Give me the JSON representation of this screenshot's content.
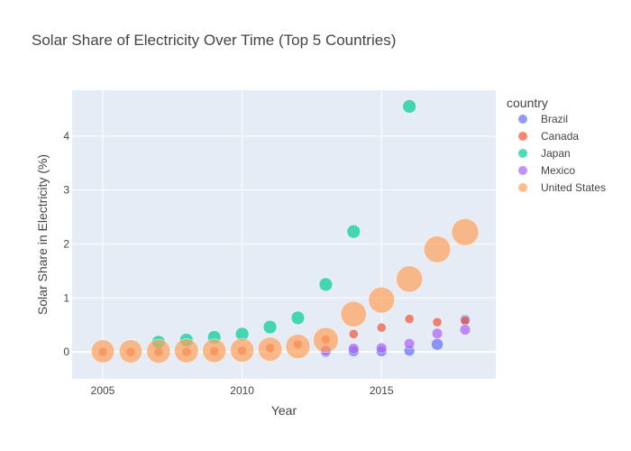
{
  "chart_data": {
    "type": "scatter",
    "title": "Solar Share of Electricity Over Time (Top 5 Countries)",
    "xlabel": "Year",
    "ylabel": "Solar Share in Electricity (%)",
    "xlim": [
      2003.9,
      2019.1
    ],
    "ylim": [
      -0.5,
      4.85
    ],
    "x_ticks": [
      2005,
      2010,
      2015
    ],
    "y_ticks": [
      0,
      1,
      2,
      3,
      4
    ],
    "grid": true,
    "legend_title": "country",
    "legend_position": "right",
    "series": [
      {
        "name": "Brazil",
        "color": "#636efa",
        "points": [
          {
            "x": 2013,
            "y": 0.0,
            "size": 0.03
          },
          {
            "x": 2014,
            "y": 0.01,
            "size": 0.03
          },
          {
            "x": 2015,
            "y": 0.01,
            "size": 0.03
          },
          {
            "x": 2016,
            "y": 0.02,
            "size": 0.03
          },
          {
            "x": 2017,
            "y": 0.14,
            "size": 0.055
          },
          {
            "x": 2018,
            "y": 0.59,
            "size": 0.03
          }
        ]
      },
      {
        "name": "Canada",
        "color": "#ef553b",
        "points": [
          {
            "x": 2005,
            "y": 0.0,
            "size": 0.01
          },
          {
            "x": 2006,
            "y": 0.0,
            "size": 0.01
          },
          {
            "x": 2007,
            "y": 0.0,
            "size": 0.01
          },
          {
            "x": 2008,
            "y": 0.0,
            "size": 0.01
          },
          {
            "x": 2009,
            "y": 0.01,
            "size": 0.01
          },
          {
            "x": 2010,
            "y": 0.02,
            "size": 0.01
          },
          {
            "x": 2011,
            "y": 0.07,
            "size": 0.01
          },
          {
            "x": 2012,
            "y": 0.14,
            "size": 0.01
          },
          {
            "x": 2013,
            "y": 0.23,
            "size": 0.01
          },
          {
            "x": 2014,
            "y": 0.33,
            "size": 0.01
          },
          {
            "x": 2015,
            "y": 0.45,
            "size": 0.01
          },
          {
            "x": 2016,
            "y": 0.61,
            "size": 0.01
          },
          {
            "x": 2017,
            "y": 0.55,
            "size": 0.01
          },
          {
            "x": 2018,
            "y": 0.58,
            "size": 0.01
          }
        ]
      },
      {
        "name": "Japan",
        "color": "#00cc96",
        "points": [
          {
            "x": 2007,
            "y": 0.18,
            "size": 0.1
          },
          {
            "x": 2008,
            "y": 0.22,
            "size": 0.1
          },
          {
            "x": 2009,
            "y": 0.27,
            "size": 0.1
          },
          {
            "x": 2010,
            "y": 0.33,
            "size": 0.1
          },
          {
            "x": 2011,
            "y": 0.46,
            "size": 0.1
          },
          {
            "x": 2012,
            "y": 0.63,
            "size": 0.1
          },
          {
            "x": 2013,
            "y": 1.25,
            "size": 0.1
          },
          {
            "x": 2014,
            "y": 2.23,
            "size": 0.1
          },
          {
            "x": 2016,
            "y": 4.55,
            "size": 0.1
          }
        ]
      },
      {
        "name": "Mexico",
        "color": "#ab63fa",
        "points": [
          {
            "x": 2013,
            "y": 0.03,
            "size": 0.03
          },
          {
            "x": 2014,
            "y": 0.06,
            "size": 0.03
          },
          {
            "x": 2015,
            "y": 0.07,
            "size": 0.03
          },
          {
            "x": 2016,
            "y": 0.15,
            "size": 0.03
          },
          {
            "x": 2017,
            "y": 0.34,
            "size": 0.03
          },
          {
            "x": 2018,
            "y": 0.41,
            "size": 0.03
          }
        ]
      },
      {
        "name": "United States",
        "color": "#ffa15a",
        "points": [
          {
            "x": 2005,
            "y": 0.01,
            "size": 0.64
          },
          {
            "x": 2006,
            "y": 0.01,
            "size": 0.64
          },
          {
            "x": 2007,
            "y": 0.01,
            "size": 0.7
          },
          {
            "x": 2008,
            "y": 0.02,
            "size": 0.72
          },
          {
            "x": 2009,
            "y": 0.02,
            "size": 0.68
          },
          {
            "x": 2010,
            "y": 0.03,
            "size": 0.7
          },
          {
            "x": 2011,
            "y": 0.05,
            "size": 0.72
          },
          {
            "x": 2012,
            "y": 0.1,
            "size": 0.75
          },
          {
            "x": 2013,
            "y": 0.22,
            "size": 0.82
          },
          {
            "x": 2014,
            "y": 0.7,
            "size": 0.86
          },
          {
            "x": 2015,
            "y": 0.96,
            "size": 0.9
          },
          {
            "x": 2016,
            "y": 1.35,
            "size": 0.93
          },
          {
            "x": 2017,
            "y": 1.9,
            "size": 0.96
          },
          {
            "x": 2018,
            "y": 2.22,
            "size": 1.0
          }
        ]
      }
    ]
  }
}
